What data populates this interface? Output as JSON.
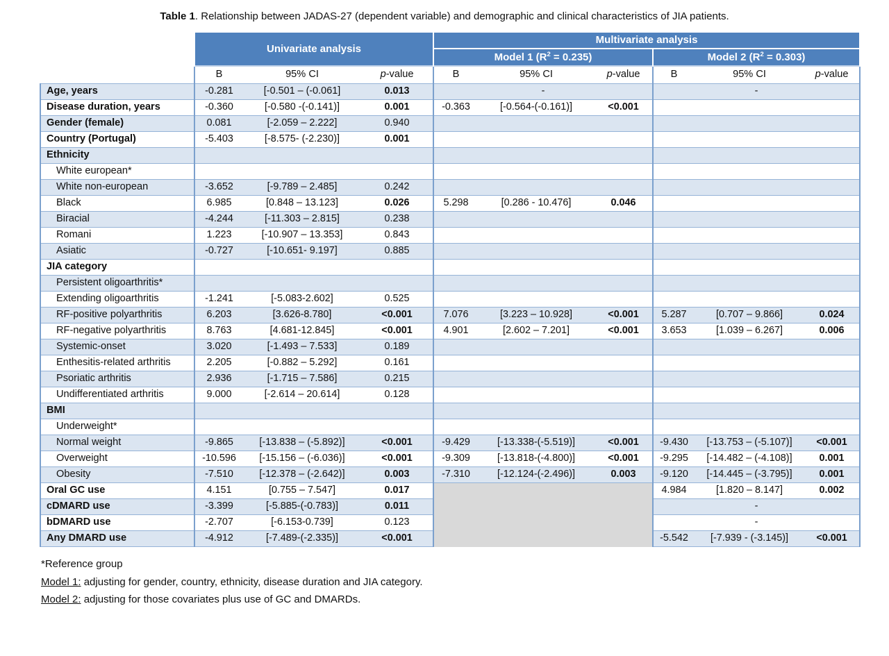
{
  "page": {
    "title_bold": "Table 1",
    "title_rest": ". Relationship between JADAS-27 (dependent variable) and demographic and clinical characteristics of JIA patients."
  },
  "colors": {
    "header_blue": "#4f81bd",
    "row_blue": "#dbe5f1",
    "gray_block": "#d9d9d9",
    "h_border": "#95b3d7",
    "v_border": "#7ba0cd"
  },
  "header": {
    "univariate": "Univariate analysis",
    "multivariate": "Multivariate analysis",
    "model1": {
      "prefix": "Model 1 (R",
      "sup": "2",
      "suffix": " = 0.235)"
    },
    "model2": {
      "prefix": "Model 2 (R",
      "sup": "2",
      "suffix": " = 0.303)"
    },
    "sub": {
      "b": "B",
      "ci": "95% CI",
      "p_italic": "p",
      "p_rest": "-value"
    }
  },
  "rows": [
    {
      "label": "Age, years",
      "bold": true,
      "indent": false,
      "uni": {
        "b": "-0.281",
        "ci": "[-0.501 – (-0.061]",
        "p": "0.013",
        "sig": true
      },
      "m1": "dash",
      "m2": "dash"
    },
    {
      "label": "Disease duration, years",
      "bold": true,
      "indent": false,
      "uni": {
        "b": "-0.360",
        "ci": "[-0.580 -(-0.141)]",
        "p": "0.001",
        "sig": true
      },
      "m1": {
        "b": "-0.363",
        "ci": "[-0.564-(-0.161)]",
        "p": "<0.001",
        "sig": true
      },
      "m2": null
    },
    {
      "label": "Gender (female)",
      "bold": true,
      "indent": false,
      "uni": {
        "b": "0.081",
        "ci": "[-2.059 – 2.222]",
        "p": "0.940",
        "sig": false
      },
      "m1": null,
      "m2": null
    },
    {
      "label": "Country (Portugal)",
      "bold": true,
      "indent": false,
      "uni": {
        "b": "-5.403",
        "ci": "[-8.575- (-2.230)]",
        "p": "0.001",
        "sig": true
      },
      "m1": null,
      "m2": null
    },
    {
      "label": "Ethnicity",
      "bold": true,
      "indent": false,
      "uni": null,
      "m1": null,
      "m2": null
    },
    {
      "label": "White european*",
      "bold": false,
      "indent": true,
      "uni": null,
      "m1": null,
      "m2": null
    },
    {
      "label": "White non-european",
      "bold": false,
      "indent": true,
      "uni": {
        "b": "-3.652",
        "ci": "[-9.789 – 2.485]",
        "p": "0.242",
        "sig": false
      },
      "m1": null,
      "m2": null
    },
    {
      "label": "Black",
      "bold": false,
      "indent": true,
      "uni": {
        "b": "6.985",
        "ci": "[0.848 – 13.123]",
        "p": "0.026",
        "sig": true
      },
      "m1": {
        "b": "5.298",
        "ci": "[0.286 - 10.476]",
        "p": "0.046",
        "sig": true
      },
      "m2": null
    },
    {
      "label": "Biracial",
      "bold": false,
      "indent": true,
      "uni": {
        "b": "-4.244",
        "ci": "[-11.303 – 2.815]",
        "p": "0.238",
        "sig": false
      },
      "m1": null,
      "m2": null
    },
    {
      "label": "Romani",
      "bold": false,
      "indent": true,
      "uni": {
        "b": "1.223",
        "ci": "[-10.907 – 13.353]",
        "p": "0.843",
        "sig": false
      },
      "m1": null,
      "m2": null
    },
    {
      "label": "Asiatic",
      "bold": false,
      "indent": true,
      "uni": {
        "b": "-0.727",
        "ci": "[-10.651- 9.197]",
        "p": "0.885",
        "sig": false
      },
      "m1": null,
      "m2": null
    },
    {
      "label": "JIA category",
      "bold": true,
      "indent": false,
      "uni": null,
      "m1": null,
      "m2": null
    },
    {
      "label": "Persistent oligoarthritis*",
      "bold": false,
      "indent": true,
      "uni": null,
      "m1": null,
      "m2": null
    },
    {
      "label": "Extending oligoarthritis",
      "bold": false,
      "indent": true,
      "uni": {
        "b": "-1.241",
        "ci": "[-5.083-2.602]",
        "p": "0.525",
        "sig": false
      },
      "m1": null,
      "m2": null
    },
    {
      "label": "RF-positive polyarthritis",
      "bold": false,
      "indent": true,
      "uni": {
        "b": "6.203",
        "ci": "[3.626-8.780]",
        "p": "<0.001",
        "sig": true
      },
      "m1": {
        "b": "7.076",
        "ci": "[3.223 – 10.928]",
        "p": "<0.001",
        "sig": true
      },
      "m2": {
        "b": "5.287",
        "ci": "[0.707 – 9.866]",
        "p": "0.024",
        "sig": true
      }
    },
    {
      "label": "RF-negative polyarthritis",
      "bold": false,
      "indent": true,
      "uni": {
        "b": "8.763",
        "ci": "[4.681-12.845]",
        "p": "<0.001",
        "sig": true
      },
      "m1": {
        "b": "4.901",
        "ci": "[2.602 – 7.201]",
        "p": "<0.001",
        "sig": true
      },
      "m2": {
        "b": "3.653",
        "ci": "[1.039 – 6.267]",
        "p": "0.006",
        "sig": true
      }
    },
    {
      "label": "Systemic-onset",
      "bold": false,
      "indent": true,
      "uni": {
        "b": "3.020",
        "ci": "[-1.493 – 7.533]",
        "p": "0.189",
        "sig": false
      },
      "m1": null,
      "m2": null
    },
    {
      "label": "Enthesitis-related arthritis",
      "bold": false,
      "indent": true,
      "uni": {
        "b": "2.205",
        "ci": "[-0.882 – 5.292]",
        "p": "0.161",
        "sig": false
      },
      "m1": null,
      "m2": null
    },
    {
      "label": "Psoriatic arthritis",
      "bold": false,
      "indent": true,
      "uni": {
        "b": "2.936",
        "ci": "[-1.715 – 7.586]",
        "p": "0.215",
        "sig": false
      },
      "m1": null,
      "m2": null
    },
    {
      "label": "Undifferentiated arthritis",
      "bold": false,
      "indent": true,
      "uni": {
        "b": "9.000",
        "ci": "[-2.614 – 20.614]",
        "p": "0.128",
        "sig": false
      },
      "m1": null,
      "m2": null
    },
    {
      "label": "BMI",
      "bold": true,
      "indent": false,
      "uni": null,
      "m1": null,
      "m2": null
    },
    {
      "label": "Underweight*",
      "bold": false,
      "indent": true,
      "uni": null,
      "m1": null,
      "m2": null
    },
    {
      "label": "Normal weight",
      "bold": false,
      "indent": true,
      "uni": {
        "b": "-9.865",
        "ci": "[-13.838 – (-5.892)]",
        "p": "<0.001",
        "sig": true
      },
      "m1": {
        "b": "-9.429",
        "ci": "[-13.338-(-5.519)]",
        "p": "<0.001",
        "sig": true
      },
      "m2": {
        "b": "-9.430",
        "ci": "[-13.753 – (-5.107)]",
        "p": "<0.001",
        "sig": true
      }
    },
    {
      "label": "Overweight",
      "bold": false,
      "indent": true,
      "uni": {
        "b": "-10.596",
        "ci": "[-15.156 – (-6.036)]",
        "p": "<0.001",
        "sig": true
      },
      "m1": {
        "b": "-9.309",
        "ci": "[-13.818-(-4.800)]",
        "p": "<0.001",
        "sig": true
      },
      "m2": {
        "b": "-9.295",
        "ci": "[-14.482 – (-4.108)]",
        "p": "0.001",
        "sig": true
      }
    },
    {
      "label": "Obesity",
      "bold": false,
      "indent": true,
      "uni": {
        "b": "-7.510",
        "ci": "[-12.378 – (-2.642)]",
        "p": "0.003",
        "sig": true
      },
      "m1": {
        "b": "-7.310",
        "ci": "[-12.124-(-2.496)]",
        "p": "0.003",
        "sig": true
      },
      "m2": {
        "b": "-9.120",
        "ci": "[-14.445 – (-3.795)]",
        "p": "0.001",
        "sig": true
      }
    },
    {
      "label": "Oral GC use",
      "bold": true,
      "indent": false,
      "uni": {
        "b": "4.151",
        "ci": "[0.755 – 7.547]",
        "p": "0.017",
        "sig": true
      },
      "m1": "gray",
      "m2": {
        "b": "4.984",
        "ci": "[1.820 – 8.147]",
        "p": "0.002",
        "sig": true
      }
    },
    {
      "label": "cDMARD use",
      "bold": true,
      "indent": false,
      "uni": {
        "b": "-3.399",
        "ci": "[-5.885-(-0.783)]",
        "p": "0.011",
        "sig": true
      },
      "m1": "skip",
      "m2": "dash"
    },
    {
      "label": "bDMARD use",
      "bold": true,
      "indent": false,
      "uni": {
        "b": "-2.707",
        "ci": "[-6.153-0.739]",
        "p": "0.123",
        "sig": false
      },
      "m1": "skip",
      "m2": "dash"
    },
    {
      "label": "Any DMARD use",
      "bold": true,
      "indent": false,
      "uni": {
        "b": "-4.912",
        "ci": "[-7.489-(-2.335)]",
        "p": "<0.001",
        "sig": true
      },
      "m1": "skip",
      "m2": {
        "b": "-5.542",
        "ci": "[-7.939 - (-3.145)]",
        "p": "<0.001",
        "sig": true
      }
    }
  ],
  "dash": "-",
  "footnotes": {
    "reference": "*Reference group",
    "model1_label": "Model 1:",
    "model1_text": " adjusting for gender, country, ethnicity, disease duration and JIA category.",
    "model2_label": "Model 2:",
    "model2_text": " adjusting for those covariates plus use of GC and DMARDs."
  }
}
